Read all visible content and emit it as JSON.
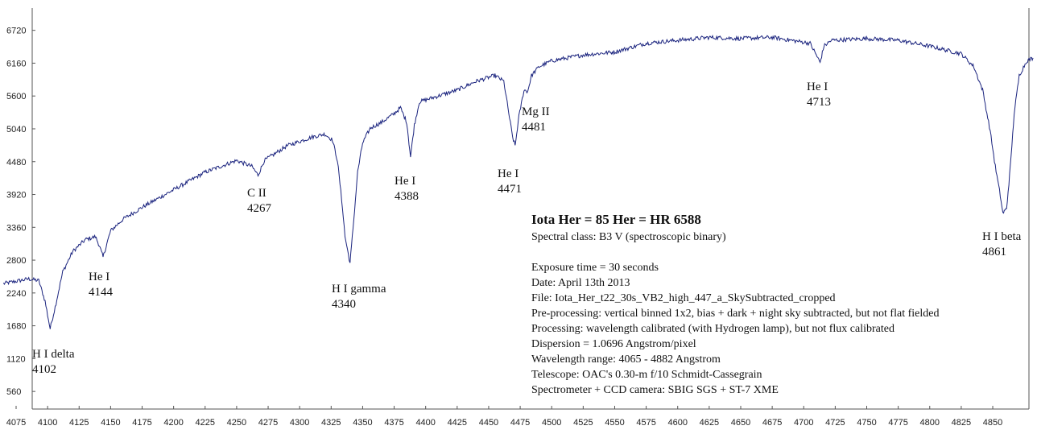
{
  "chart_data": {
    "type": "line",
    "title": "Iota Her = 85 Her = HR 6588",
    "xlabel": "",
    "ylabel": "",
    "xlim": [
      4075,
      4882
    ],
    "ylim": [
      260,
      7100
    ],
    "grid": false,
    "x_ticks": [
      4075,
      4100,
      4125,
      4150,
      4175,
      4200,
      4225,
      4250,
      4275,
      4300,
      4325,
      4350,
      4375,
      4400,
      4425,
      4450,
      4475,
      4500,
      4525,
      4550,
      4575,
      4600,
      4625,
      4650,
      4675,
      4700,
      4725,
      4750,
      4775,
      4800,
      4825,
      4850
    ],
    "y_ticks": [
      560,
      1120,
      1680,
      2240,
      2800,
      3360,
      3920,
      4480,
      5040,
      5600,
      6160,
      6720
    ],
    "line_color": "#1a237e",
    "series": [
      {
        "x": [
          4065,
          4075,
          4085,
          4093,
          4098,
          4102,
          4106,
          4112,
          4120,
          4130,
          4138,
          4141,
          4144,
          4147,
          4150,
          4160,
          4175,
          4200,
          4225,
          4250,
          4262,
          4267,
          4272,
          4290,
          4310,
          4320,
          4326,
          4330,
          4334,
          4336,
          4340,
          4343,
          4346,
          4350,
          4356,
          4365,
          4375,
          4380,
          4385,
          4388,
          4391,
          4395,
          4410,
          4425,
          4440,
          4455,
          4462,
          4466,
          4469,
          4471,
          4474,
          4478,
          4481,
          4484,
          4490,
          4500,
          4525,
          4550,
          4575,
          4600,
          4625,
          4650,
          4675,
          4690,
          4705,
          4710,
          4713,
          4716,
          4722,
          4750,
          4775,
          4800,
          4825,
          4835,
          4842,
          4848,
          4852,
          4856,
          4858,
          4861,
          4864,
          4867,
          4871,
          4877,
          4882
        ],
        "y": [
          2400,
          2440,
          2480,
          2450,
          2100,
          1630,
          2000,
          2600,
          2950,
          3150,
          3200,
          3050,
          2850,
          3080,
          3300,
          3500,
          3700,
          4000,
          4300,
          4500,
          4400,
          4250,
          4500,
          4750,
          4900,
          4950,
          4850,
          4500,
          3700,
          3200,
          2750,
          3500,
          4300,
          4800,
          5050,
          5150,
          5300,
          5400,
          5150,
          4560,
          5100,
          5500,
          5600,
          5700,
          5850,
          5950,
          5850,
          5300,
          4900,
          4750,
          5250,
          5700,
          5680,
          5950,
          6100,
          6200,
          6300,
          6350,
          6500,
          6550,
          6600,
          6580,
          6600,
          6550,
          6500,
          6300,
          6170,
          6450,
          6550,
          6580,
          6550,
          6450,
          6320,
          6100,
          5700,
          5000,
          4400,
          3900,
          3600,
          3680,
          4400,
          5300,
          5950,
          6200,
          6250
        ]
      }
    ],
    "annotations": [
      {
        "line1": "H I delta",
        "line2": "4102"
      },
      {
        "line1": "He I",
        "line2": "4144"
      },
      {
        "line1": "C II",
        "line2": "4267"
      },
      {
        "line1": "H I gamma",
        "line2": "4340"
      },
      {
        "line1": "He I",
        "line2": "4388"
      },
      {
        "line1": "He I",
        "line2": "4471"
      },
      {
        "line1": "Mg II",
        "line2": "4481"
      },
      {
        "line1": "He I",
        "line2": "4713"
      },
      {
        "line1": "H I beta",
        "line2": "4861"
      }
    ],
    "info": {
      "heading": "Iota Her = 85 Her = HR 6588",
      "lines": [
        "Spectral class: B3 V  (spectroscopic binary)",
        "",
        "Exposure time = 30 seconds",
        "Date: April 13th 2013",
        "File: Iota_Her_t22_30s_VB2_high_447_a_SkySubtracted_cropped",
        "Pre-processing: vertical binned 1x2, bias + dark + night sky subtracted, but not flat fielded",
        "Processing: wavelength calibrated (with Hydrogen lamp), but not flux calibrated",
        "Dispersion = 1.0696 Angstrom/pixel",
        "Wavelength range: 4065 - 4882 Angstrom",
        "Telescope: OAC's 0.30-m f/10 Schmidt-Cassegrain",
        "Spectrometer + CCD camera: SBIG SGS + ST-7 XME"
      ]
    }
  }
}
